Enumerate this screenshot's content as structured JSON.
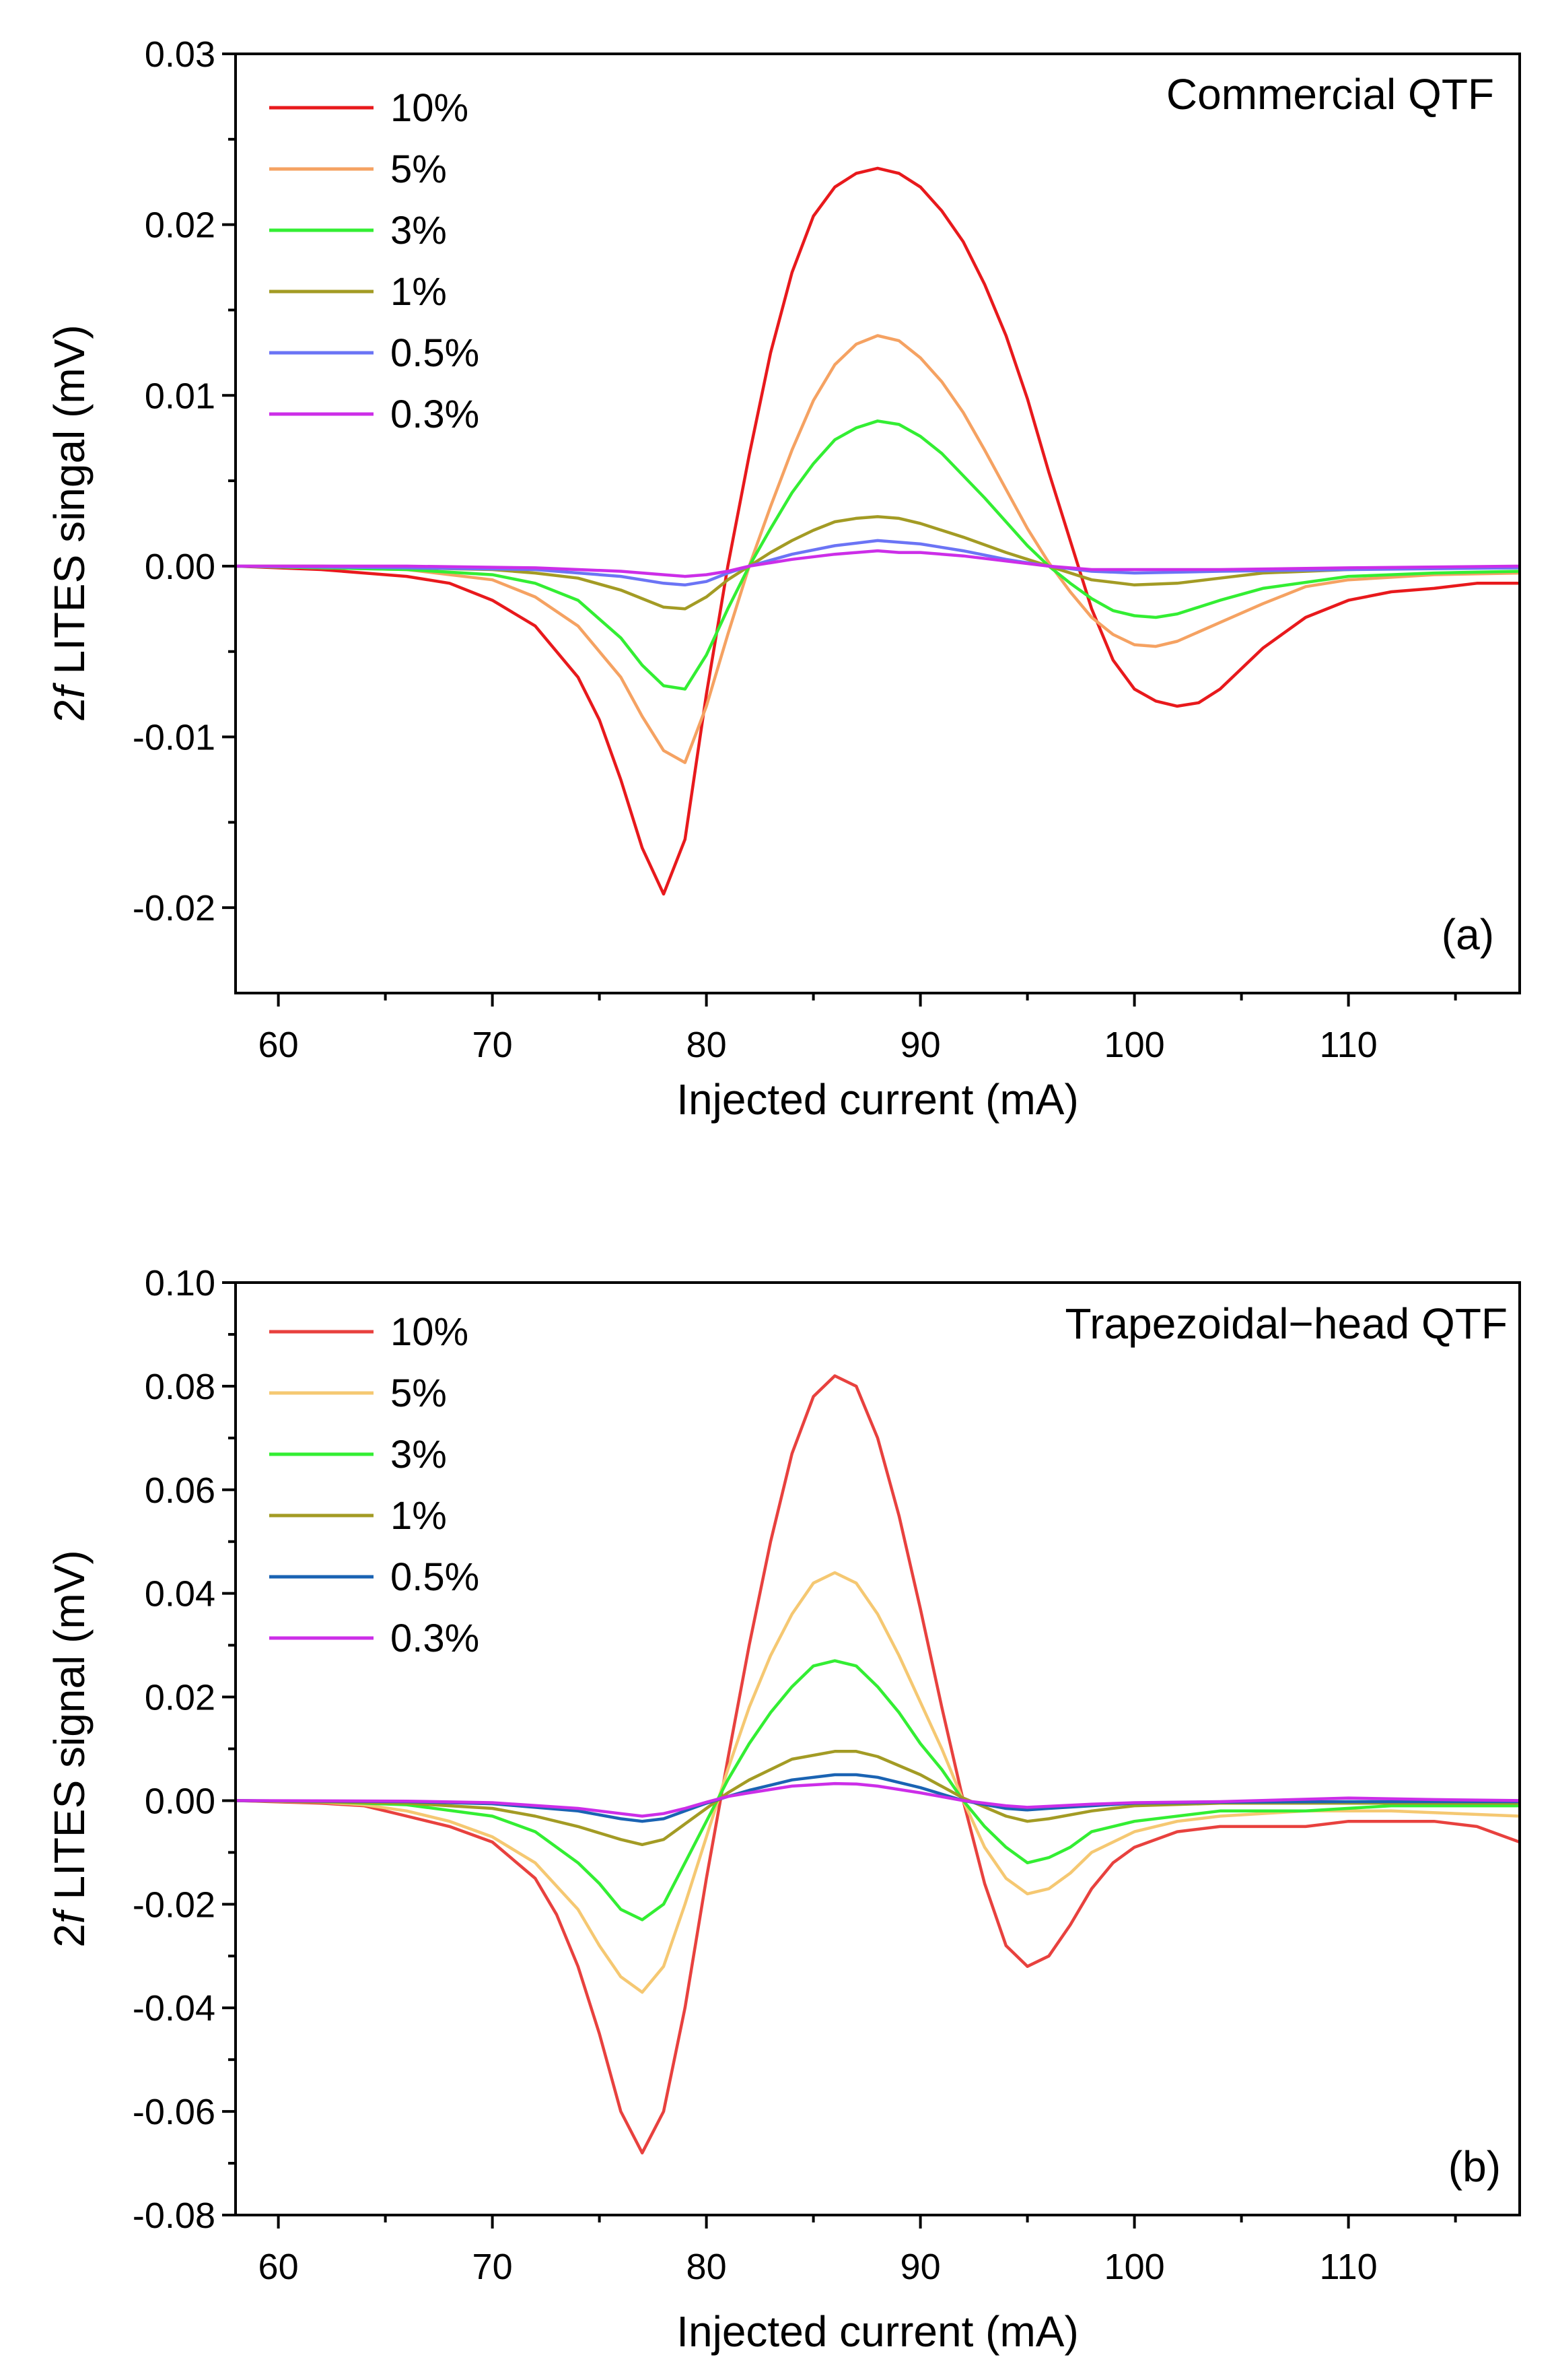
{
  "chart_data": [
    {
      "type": "line",
      "panel_label": "(a)",
      "annotation": "Commercial QTF",
      "xlabel": "Injected current (mA)",
      "ylabel_prefix": "2",
      "ylabel_italic": "f",
      "ylabel_rest": " LITES singal (mV)",
      "xlim": [
        58,
        118
      ],
      "ylim": [
        -0.025,
        0.03
      ],
      "xticks": [
        60,
        70,
        80,
        90,
        100,
        110
      ],
      "xtick_labels": [
        "60",
        "70",
        "80",
        "90",
        "100",
        "110"
      ],
      "yticks": [
        -0.02,
        -0.01,
        0.0,
        0.01,
        0.02,
        0.03
      ],
      "ytick_labels": [
        "-0.02",
        "-0.01",
        "0.00",
        "0.01",
        "0.02",
        "0.03"
      ],
      "legend_position": "top-left",
      "grid": false,
      "series": [
        {
          "name": "10%",
          "color": "#e8191c",
          "x": [
            58,
            62,
            66,
            68,
            70,
            72,
            74,
            75,
            76,
            77,
            78,
            79,
            80,
            81,
            82,
            83,
            84,
            85,
            86,
            87,
            88,
            89,
            90,
            91,
            92,
            93,
            94,
            95,
            96,
            97,
            98,
            99,
            100,
            101,
            102,
            103,
            104,
            105,
            106,
            108,
            110,
            112,
            114,
            116,
            118
          ],
          "y": [
            0.0,
            -0.0002,
            -0.0006,
            -0.001,
            -0.002,
            -0.0035,
            -0.0065,
            -0.009,
            -0.0125,
            -0.0165,
            -0.0192,
            -0.016,
            -0.0075,
            0.0,
            0.0065,
            0.0125,
            0.0172,
            0.0205,
            0.0222,
            0.023,
            0.0233,
            0.023,
            0.0222,
            0.0208,
            0.019,
            0.0165,
            0.0135,
            0.0098,
            0.0055,
            0.0015,
            -0.0025,
            -0.0055,
            -0.0072,
            -0.0079,
            -0.0082,
            -0.008,
            -0.0072,
            -0.006,
            -0.0048,
            -0.003,
            -0.002,
            -0.0015,
            -0.0013,
            -0.001,
            -0.001
          ]
        },
        {
          "name": "5%",
          "color": "#f5a262",
          "x": [
            58,
            62,
            66,
            70,
            72,
            74,
            76,
            77,
            78,
            79,
            80,
            81,
            82,
            83,
            84,
            85,
            86,
            87,
            88,
            89,
            90,
            91,
            92,
            93,
            94,
            95,
            96,
            97,
            98,
            99,
            100,
            101,
            102,
            104,
            106,
            108,
            110,
            114,
            118
          ],
          "y": [
            0.0,
            -0.0001,
            -0.0002,
            -0.0008,
            -0.0018,
            -0.0035,
            -0.0065,
            -0.0088,
            -0.0108,
            -0.0115,
            -0.0082,
            -0.004,
            0.0,
            0.0035,
            0.0068,
            0.0097,
            0.0118,
            0.013,
            0.0135,
            0.0132,
            0.0122,
            0.0108,
            0.009,
            0.0068,
            0.0045,
            0.0022,
            0.0002,
            -0.0015,
            -0.003,
            -0.004,
            -0.0046,
            -0.0047,
            -0.0044,
            -0.0033,
            -0.0022,
            -0.0012,
            -0.0008,
            -0.0005,
            -0.0004
          ]
        },
        {
          "name": "3%",
          "color": "#33ee33",
          "x": [
            58,
            62,
            66,
            70,
            72,
            74,
            76,
            77,
            78,
            79,
            80,
            81,
            82,
            83,
            84,
            85,
            86,
            87,
            88,
            89,
            90,
            91,
            92,
            93,
            94,
            95,
            96,
            97,
            98,
            99,
            100,
            101,
            102,
            104,
            106,
            110,
            114,
            118
          ],
          "y": [
            0.0,
            -0.0001,
            -0.0002,
            -0.0005,
            -0.001,
            -0.002,
            -0.0042,
            -0.0058,
            -0.007,
            -0.0072,
            -0.0052,
            -0.0025,
            0.0,
            0.0022,
            0.0043,
            0.006,
            0.0074,
            0.0081,
            0.0085,
            0.0083,
            0.0076,
            0.0066,
            0.0053,
            0.004,
            0.0026,
            0.0012,
            0.0,
            -0.001,
            -0.0019,
            -0.0026,
            -0.0029,
            -0.003,
            -0.0028,
            -0.002,
            -0.0013,
            -0.0006,
            -0.0004,
            -0.0003
          ]
        },
        {
          "name": "1%",
          "color": "#a39b24",
          "x": [
            58,
            62,
            66,
            70,
            72,
            74,
            76,
            77,
            78,
            79,
            80,
            81,
            82,
            83,
            84,
            85,
            86,
            87,
            88,
            89,
            90,
            92,
            94,
            96,
            98,
            100,
            102,
            104,
            106,
            110,
            114,
            118
          ],
          "y": [
            0.0,
            0.0,
            -0.0001,
            -0.0002,
            -0.0004,
            -0.0007,
            -0.0014,
            -0.0019,
            -0.0024,
            -0.0025,
            -0.0018,
            -0.0008,
            0.0,
            0.0008,
            0.0015,
            0.0021,
            0.0026,
            0.0028,
            0.0029,
            0.0028,
            0.0025,
            0.0017,
            0.0008,
            0.0,
            -0.0008,
            -0.0011,
            -0.001,
            -0.0007,
            -0.0004,
            -0.0002,
            -0.0001,
            -0.0001
          ]
        },
        {
          "name": "0.5%",
          "color": "#6b74f5",
          "x": [
            58,
            66,
            72,
            76,
            78,
            79,
            80,
            81,
            82,
            84,
            86,
            88,
            89,
            90,
            92,
            94,
            96,
            98,
            100,
            104,
            110,
            118
          ],
          "y": [
            0.0,
            -0.0001,
            -0.0002,
            -0.0006,
            -0.001,
            -0.0011,
            -0.0009,
            -0.0004,
            0.0,
            0.0007,
            0.0012,
            0.0015,
            0.0014,
            0.0013,
            0.0009,
            0.0004,
            0.0,
            -0.0003,
            -0.0004,
            -0.0003,
            -0.0002,
            -0.0001
          ]
        },
        {
          "name": "0.3%",
          "color": "#cc2ee8",
          "x": [
            58,
            66,
            72,
            76,
            78,
            79,
            80,
            81,
            82,
            84,
            86,
            88,
            89,
            90,
            92,
            94,
            96,
            98,
            100,
            104,
            110,
            118
          ],
          "y": [
            0.0,
            0.0,
            -0.0001,
            -0.0003,
            -0.0005,
            -0.0006,
            -0.0005,
            -0.0003,
            0.0,
            0.0004,
            0.0007,
            0.0009,
            0.0008,
            0.0008,
            0.0006,
            0.0003,
            0.0,
            -0.0002,
            -0.0002,
            -0.0002,
            -0.0001,
            0.0
          ]
        }
      ]
    },
    {
      "type": "line",
      "panel_label": "(b)",
      "annotation": "Trapezoidal−head QTF",
      "xlabel": "Injected current (mA)",
      "ylabel_prefix": "2",
      "ylabel_italic": "f",
      "ylabel_rest": " LITES signal (mV)",
      "xlim": [
        58,
        118
      ],
      "ylim": [
        -0.08,
        0.1
      ],
      "xticks": [
        60,
        70,
        80,
        90,
        100,
        110
      ],
      "xtick_labels": [
        "60",
        "70",
        "80",
        "90",
        "100",
        "110"
      ],
      "yticks": [
        -0.08,
        -0.06,
        -0.04,
        -0.02,
        0.0,
        0.02,
        0.04,
        0.06,
        0.08,
        0.1
      ],
      "ytick_labels": [
        "-0.08",
        "-0.06",
        "-0.04",
        "-0.02",
        "0.00",
        "0.02",
        "0.04",
        "0.06",
        "0.08",
        "0.10"
      ],
      "legend_position": "top-left",
      "grid": false,
      "series": [
        {
          "name": "10%",
          "color": "#e8413e",
          "x": [
            58,
            62,
            64,
            66,
            68,
            70,
            72,
            73,
            74,
            75,
            76,
            77,
            78,
            79,
            80,
            81,
            82,
            83,
            84,
            85,
            86,
            87,
            88,
            89,
            90,
            91,
            92,
            93,
            94,
            95,
            96,
            97,
            98,
            99,
            100,
            102,
            104,
            106,
            108,
            110,
            112,
            114,
            116,
            118
          ],
          "y": [
            0.0,
            -0.0005,
            -0.001,
            -0.003,
            -0.005,
            -0.008,
            -0.015,
            -0.022,
            -0.032,
            -0.045,
            -0.06,
            -0.068,
            -0.06,
            -0.04,
            -0.015,
            0.008,
            0.03,
            0.05,
            0.067,
            0.078,
            0.082,
            0.08,
            0.07,
            0.055,
            0.037,
            0.018,
            0.0,
            -0.016,
            -0.028,
            -0.032,
            -0.03,
            -0.024,
            -0.017,
            -0.012,
            -0.009,
            -0.006,
            -0.005,
            -0.005,
            -0.005,
            -0.004,
            -0.004,
            -0.004,
            -0.005,
            -0.008
          ]
        },
        {
          "name": "5%",
          "color": "#f5c872",
          "x": [
            58,
            62,
            64,
            66,
            68,
            70,
            72,
            74,
            75,
            76,
            77,
            78,
            79,
            80,
            81,
            82,
            83,
            84,
            85,
            86,
            87,
            88,
            89,
            90,
            91,
            92,
            93,
            94,
            95,
            96,
            97,
            98,
            100,
            102,
            104,
            108,
            112,
            118
          ],
          "y": [
            0.0,
            -0.0003,
            -0.0008,
            -0.002,
            -0.004,
            -0.007,
            -0.012,
            -0.021,
            -0.028,
            -0.034,
            -0.037,
            -0.032,
            -0.02,
            -0.007,
            0.006,
            0.018,
            0.028,
            0.036,
            0.042,
            0.044,
            0.042,
            0.036,
            0.028,
            0.019,
            0.01,
            0.0,
            -0.009,
            -0.015,
            -0.018,
            -0.017,
            -0.014,
            -0.01,
            -0.006,
            -0.004,
            -0.003,
            -0.002,
            -0.002,
            -0.003
          ]
        },
        {
          "name": "3%",
          "color": "#33ee33",
          "x": [
            58,
            62,
            66,
            70,
            72,
            74,
            75,
            76,
            77,
            78,
            79,
            80,
            81,
            82,
            83,
            84,
            85,
            86,
            87,
            88,
            89,
            90,
            91,
            92,
            93,
            94,
            95,
            96,
            97,
            98,
            100,
            104,
            108,
            112,
            118
          ],
          "y": [
            0.0,
            -0.0002,
            -0.0008,
            -0.003,
            -0.006,
            -0.012,
            -0.016,
            -0.021,
            -0.023,
            -0.02,
            -0.012,
            -0.004,
            0.004,
            0.011,
            0.017,
            0.022,
            0.026,
            0.027,
            0.026,
            0.022,
            0.017,
            0.011,
            0.006,
            0.0,
            -0.005,
            -0.009,
            -0.012,
            -0.011,
            -0.009,
            -0.006,
            -0.004,
            -0.002,
            -0.002,
            -0.001,
            -0.001
          ]
        },
        {
          "name": "1%",
          "color": "#a39b24",
          "x": [
            58,
            66,
            70,
            72,
            74,
            76,
            77,
            78,
            79,
            80,
            81,
            82,
            84,
            86,
            87,
            88,
            90,
            92,
            94,
            95,
            96,
            98,
            100,
            104,
            110,
            118
          ],
          "y": [
            0.0,
            -0.0005,
            -0.0015,
            -0.003,
            -0.005,
            -0.0075,
            -0.0085,
            -0.0075,
            -0.0045,
            -0.0015,
            0.0015,
            0.004,
            0.008,
            0.0095,
            0.0095,
            0.0085,
            0.005,
            0.0005,
            -0.003,
            -0.004,
            -0.0035,
            -0.002,
            -0.001,
            -0.0005,
            -0.0005,
            -0.0005
          ]
        },
        {
          "name": "0.5%",
          "color": "#1a63b3",
          "x": [
            58,
            66,
            70,
            74,
            76,
            77,
            78,
            79,
            80,
            81,
            82,
            84,
            86,
            87,
            88,
            90,
            92,
            94,
            95,
            96,
            98,
            100,
            104,
            110,
            118
          ],
          "y": [
            0.0,
            -0.0002,
            -0.0006,
            -0.002,
            -0.0035,
            -0.004,
            -0.0035,
            -0.002,
            -0.0005,
            0.0008,
            0.002,
            0.004,
            0.005,
            0.005,
            0.0045,
            0.0025,
            0.0,
            -0.0015,
            -0.0018,
            -0.0015,
            -0.001,
            -0.0005,
            -0.0003,
            -0.0002,
            -0.0002
          ]
        },
        {
          "name": "0.3%",
          "color": "#cc2ee8",
          "x": [
            58,
            66,
            70,
            74,
            76,
            77,
            78,
            79,
            80,
            81,
            82,
            84,
            86,
            87,
            88,
            90,
            92,
            94,
            95,
            96,
            98,
            100,
            104,
            110,
            114,
            118
          ],
          "y": [
            0.0,
            -0.0001,
            -0.0004,
            -0.0015,
            -0.0025,
            -0.003,
            -0.0025,
            -0.0015,
            -0.0003,
            0.0008,
            0.0015,
            0.0028,
            0.0033,
            0.0032,
            0.0028,
            0.0015,
            0.0,
            -0.001,
            -0.0013,
            -0.0011,
            -0.0007,
            -0.0004,
            -0.0002,
            0.0005,
            0.0002,
            0.0
          ]
        }
      ]
    }
  ]
}
